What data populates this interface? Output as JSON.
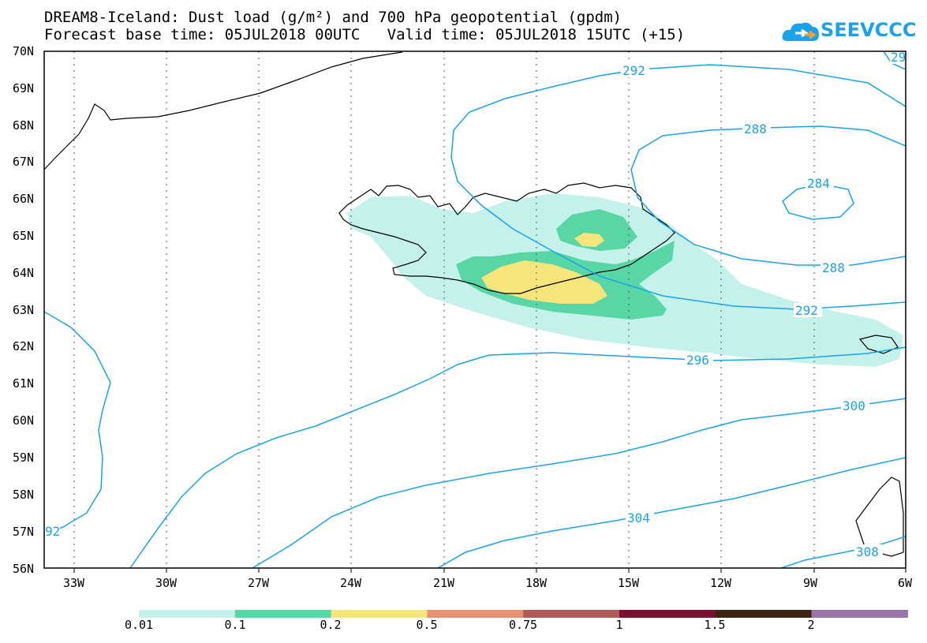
{
  "title_line1": "DREAM8-Iceland: Dust load (g/m²) and 700 hPa geopotential (gpdm)",
  "title_line2": "Forecast base time: 05JUL2018 00UTC   Valid time: 05JUL2018 15UTC (+15)",
  "logo_text": "SEEVCCC",
  "lat_labels": [
    "70N",
    "69N",
    "68N",
    "67N",
    "66N",
    "65N",
    "64N",
    "63N",
    "62N",
    "61N",
    "60N",
    "59N",
    "58N",
    "57N",
    "56N"
  ],
  "lon_labels": [
    "33W",
    "30W",
    "27W",
    "24W",
    "21W",
    "18W",
    "15W",
    "12W",
    "9W",
    "6W"
  ],
  "contour_labels": [
    "292",
    "288",
    "284",
    "288",
    "292",
    "296",
    "300",
    "304",
    "308",
    "92",
    "29"
  ],
  "colorbar": {
    "colors": [
      "#c4f2ea",
      "#58d6a6",
      "#f5e57a",
      "#e89070",
      "#b05a55",
      "#7a0f30",
      "#3a2412",
      "#9a74a8"
    ],
    "labels": [
      "0.01",
      "0.1",
      "0.2",
      "0.5",
      "0.75",
      "1",
      "1.5",
      "2"
    ]
  },
  "contour_color": "#1aa3e8"
}
